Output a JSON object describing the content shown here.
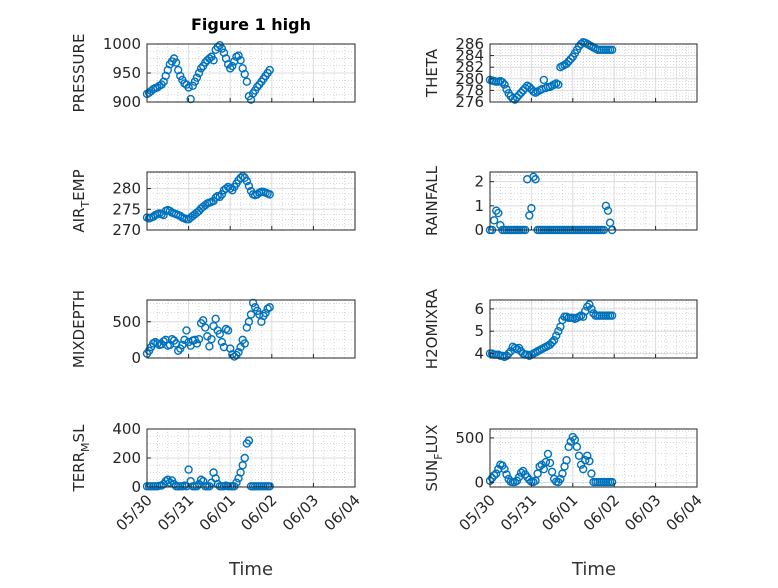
{
  "title": "Figure 1 high",
  "xlabel": "Time",
  "x_tick_labels": [
    "05/30",
    "05/31",
    "06/01",
    "06/02",
    "06/03",
    "06/04"
  ],
  "marker_color": "#0072BD",
  "chart_data": [
    {
      "type": "scatter",
      "id": "pressure",
      "ylabel": "PRESSURE",
      "ylim": [
        900,
        1000
      ],
      "yticks": [
        900,
        950,
        1000
      ],
      "grid": true,
      "minor_grid": true,
      "xlim": [
        "05/30",
        "06/04"
      ],
      "x": [
        0,
        0.05,
        0.1,
        0.15,
        0.2,
        0.25,
        0.3,
        0.35,
        0.4,
        0.45,
        0.5,
        0.55,
        0.6,
        0.65,
        0.7,
        0.75,
        0.8,
        0.85,
        0.9,
        0.95,
        1.0,
        1.05,
        1.1,
        1.15,
        1.2,
        1.25,
        1.3,
        1.35,
        1.4,
        1.45,
        1.5,
        1.55,
        1.6,
        1.65,
        1.7,
        1.75,
        1.8,
        1.85,
        1.9,
        1.95,
        2.0,
        2.05,
        2.1,
        2.15,
        2.2,
        2.25,
        2.3,
        2.35,
        2.4,
        2.45,
        2.5,
        2.55,
        2.6,
        2.65,
        2.7,
        2.75,
        2.8,
        2.85,
        2.9,
        2.95
      ],
      "y": [
        914,
        916,
        919,
        922,
        924,
        925,
        928,
        930,
        935,
        945,
        955,
        965,
        970,
        975,
        968,
        955,
        945,
        938,
        932,
        930,
        925,
        905,
        928,
        935,
        942,
        950,
        958,
        962,
        968,
        972,
        975,
        978,
        972,
        990,
        995,
        998,
        992,
        985,
        975,
        965,
        958,
        962,
        970,
        978,
        980,
        972,
        958,
        948,
        935,
        910,
        904,
        915,
        920,
        926,
        930,
        935,
        940,
        945,
        950,
        955
      ]
    },
    {
      "type": "scatter",
      "id": "theta",
      "ylabel": "THETA",
      "ylim": [
        276,
        286
      ],
      "yticks": [
        276,
        278,
        280,
        282,
        284,
        286
      ],
      "grid": true,
      "minor_grid": true,
      "x": [
        0,
        0.05,
        0.1,
        0.15,
        0.2,
        0.25,
        0.3,
        0.35,
        0.4,
        0.45,
        0.5,
        0.55,
        0.6,
        0.65,
        0.7,
        0.75,
        0.8,
        0.85,
        0.9,
        0.95,
        1.0,
        1.05,
        1.1,
        1.15,
        1.2,
        1.25,
        1.3,
        1.35,
        1.4,
        1.45,
        1.5,
        1.55,
        1.6,
        1.65,
        1.7,
        1.75,
        1.8,
        1.85,
        1.9,
        1.95,
        2.0,
        2.05,
        2.1,
        2.15,
        2.2,
        2.25,
        2.3,
        2.35,
        2.4,
        2.45,
        2.5,
        2.55,
        2.6,
        2.65,
        2.7,
        2.75,
        2.8,
        2.85,
        2.9,
        2.95
      ],
      "y": [
        279.8,
        279.7,
        279.6,
        279.5,
        279.5,
        279.6,
        279.4,
        279.0,
        278.2,
        277.5,
        277.0,
        276.6,
        276.4,
        276.8,
        277.2,
        277.6,
        278.0,
        278.4,
        278.8,
        278.6,
        278.2,
        277.8,
        277.6,
        277.8,
        278.0,
        278.2,
        279.8,
        278.4,
        278.6,
        278.6,
        278.8,
        279.0,
        279.2,
        279.0,
        282.0,
        282.2,
        282.4,
        282.6,
        283.0,
        283.4,
        283.8,
        284.4,
        285.0,
        285.6,
        286.0,
        286.3,
        286.2,
        286.0,
        285.8,
        285.6,
        285.4,
        285.2,
        285.0,
        285.0,
        285.0,
        285.0,
        285.0,
        285.0,
        285.0,
        285.0
      ]
    },
    {
      "type": "scatter",
      "id": "air_temp",
      "ylabel": "AIR_TEMP",
      "ylim": [
        270,
        284
      ],
      "yticks": [
        270,
        275,
        280
      ],
      "grid": true,
      "minor_grid": true,
      "x": [
        0,
        0.05,
        0.1,
        0.15,
        0.2,
        0.25,
        0.3,
        0.35,
        0.4,
        0.45,
        0.5,
        0.55,
        0.6,
        0.65,
        0.7,
        0.75,
        0.8,
        0.85,
        0.9,
        0.95,
        1.0,
        1.05,
        1.1,
        1.15,
        1.2,
        1.25,
        1.3,
        1.35,
        1.4,
        1.45,
        1.5,
        1.55,
        1.6,
        1.65,
        1.7,
        1.75,
        1.8,
        1.85,
        1.9,
        1.95,
        2.0,
        2.05,
        2.1,
        2.15,
        2.2,
        2.25,
        2.3,
        2.35,
        2.4,
        2.45,
        2.5,
        2.55,
        2.6,
        2.65,
        2.7,
        2.75,
        2.8,
        2.85,
        2.9,
        2.95
      ],
      "y": [
        273.0,
        272.8,
        273.0,
        273.2,
        273.6,
        273.8,
        274.0,
        273.8,
        273.6,
        274.6,
        274.8,
        274.6,
        274.2,
        274.0,
        273.8,
        273.6,
        273.4,
        273.0,
        272.8,
        272.6,
        272.6,
        273.0,
        273.4,
        273.8,
        274.2,
        274.6,
        275.2,
        275.6,
        276.0,
        276.4,
        276.6,
        276.8,
        277.0,
        277.8,
        278.2,
        278.0,
        278.6,
        279.6,
        280.0,
        280.4,
        280.0,
        279.6,
        280.4,
        281.2,
        282.0,
        282.6,
        283.0,
        282.6,
        281.8,
        280.6,
        279.4,
        278.6,
        278.4,
        278.6,
        279.0,
        279.2,
        279.2,
        279.0,
        278.8,
        278.6
      ]
    },
    {
      "type": "scatter",
      "id": "rainfall",
      "ylabel": "RAINFALL",
      "ylim": [
        0,
        2.4
      ],
      "yticks": [
        0,
        1,
        2
      ],
      "grid": true,
      "minor_grid": true,
      "x": [
        0,
        0.05,
        0.1,
        0.15,
        0.2,
        0.25,
        0.3,
        0.35,
        0.4,
        0.45,
        0.5,
        0.55,
        0.6,
        0.65,
        0.7,
        0.75,
        0.8,
        0.85,
        0.9,
        0.95,
        1.0,
        1.05,
        1.1,
        1.15,
        1.2,
        1.25,
        1.3,
        1.35,
        1.4,
        1.45,
        1.5,
        1.55,
        1.6,
        1.65,
        1.7,
        1.75,
        1.8,
        1.85,
        1.9,
        1.95,
        2.0,
        2.05,
        2.1,
        2.15,
        2.2,
        2.25,
        2.3,
        2.35,
        2.4,
        2.45,
        2.5,
        2.55,
        2.6,
        2.65,
        2.7,
        2.75,
        2.8,
        2.85,
        2.9,
        2.95
      ],
      "y": [
        0,
        0,
        0.4,
        0.8,
        0.7,
        0.2,
        0,
        0,
        0,
        0,
        0,
        0,
        0,
        0,
        0,
        0,
        0,
        0,
        2.1,
        0.6,
        0.9,
        2.2,
        2.1,
        0,
        0,
        0,
        0,
        0,
        0,
        0,
        0,
        0,
        0,
        0,
        0,
        0,
        0,
        0,
        0,
        0,
        0,
        0,
        0,
        0,
        0,
        0,
        0,
        0,
        0,
        0,
        0,
        0,
        0,
        0,
        0,
        0,
        1.0,
        0.8,
        0.3,
        0
      ]
    },
    {
      "type": "scatter",
      "id": "mixdepth",
      "ylabel": "MIXDEPTH",
      "ylim": [
        0,
        800
      ],
      "yticks": [
        0,
        500
      ],
      "grid": true,
      "minor_grid": true,
      "x": [
        0,
        0.05,
        0.1,
        0.15,
        0.2,
        0.25,
        0.3,
        0.35,
        0.4,
        0.45,
        0.5,
        0.55,
        0.6,
        0.65,
        0.7,
        0.75,
        0.8,
        0.85,
        0.9,
        0.95,
        1.0,
        1.05,
        1.1,
        1.15,
        1.2,
        1.25,
        1.3,
        1.35,
        1.4,
        1.45,
        1.5,
        1.55,
        1.6,
        1.65,
        1.7,
        1.75,
        1.8,
        1.85,
        1.9,
        1.95,
        2.0,
        2.05,
        2.1,
        2.15,
        2.2,
        2.25,
        2.3,
        2.35,
        2.4,
        2.45,
        2.5,
        2.55,
        2.6,
        2.65,
        2.7,
        2.75,
        2.8,
        2.85,
        2.9,
        2.95
      ],
      "y": [
        60,
        100,
        150,
        200,
        220,
        200,
        180,
        190,
        230,
        250,
        170,
        180,
        260,
        240,
        200,
        100,
        130,
        180,
        250,
        380,
        220,
        170,
        240,
        250,
        200,
        260,
        480,
        520,
        420,
        300,
        160,
        260,
        440,
        540,
        380,
        330,
        220,
        150,
        400,
        380,
        130,
        50,
        20,
        40,
        80,
        150,
        250,
        200,
        420,
        500,
        600,
        760,
        700,
        650,
        600,
        500,
        580,
        620,
        680,
        700
      ]
    },
    {
      "type": "scatter",
      "id": "h2omixra",
      "ylabel": "H2OMIXRA",
      "ylim": [
        3.8,
        6.4
      ],
      "yticks": [
        4,
        5,
        6
      ],
      "grid": true,
      "minor_grid": true,
      "x": [
        0,
        0.05,
        0.1,
        0.15,
        0.2,
        0.25,
        0.3,
        0.35,
        0.4,
        0.45,
        0.5,
        0.55,
        0.6,
        0.65,
        0.7,
        0.75,
        0.8,
        0.85,
        0.9,
        0.95,
        1.0,
        1.05,
        1.1,
        1.15,
        1.2,
        1.25,
        1.3,
        1.35,
        1.4,
        1.45,
        1.5,
        1.55,
        1.6,
        1.65,
        1.7,
        1.75,
        1.8,
        1.85,
        1.9,
        1.95,
        2.0,
        2.05,
        2.1,
        2.15,
        2.2,
        2.25,
        2.3,
        2.35,
        2.4,
        2.45,
        2.5,
        2.55,
        2.6,
        2.65,
        2.7,
        2.75,
        2.8,
        2.85,
        2.9,
        2.95
      ],
      "y": [
        4.0,
        4.0,
        3.95,
        3.95,
        3.95,
        3.9,
        3.9,
        3.85,
        3.9,
        4.0,
        4.1,
        4.3,
        4.25,
        4.2,
        4.25,
        4.1,
        4.0,
        3.95,
        3.95,
        3.9,
        3.95,
        4.0,
        4.05,
        4.1,
        4.15,
        4.2,
        4.25,
        4.3,
        4.35,
        4.4,
        4.5,
        4.6,
        4.8,
        5.0,
        5.2,
        5.5,
        5.65,
        5.65,
        5.6,
        5.6,
        5.6,
        5.55,
        5.6,
        5.65,
        5.7,
        5.65,
        5.9,
        6.1,
        6.2,
        6.0,
        5.8,
        5.7,
        5.7,
        5.7,
        5.7,
        5.7,
        5.7,
        5.7,
        5.7,
        5.7
      ]
    },
    {
      "type": "scatter",
      "id": "terr_msl",
      "ylabel": "TERR_MSL",
      "ylim": [
        0,
        400
      ],
      "yticks": [
        0,
        200,
        400
      ],
      "grid": true,
      "minor_grid": true,
      "x": [
        0,
        0.05,
        0.1,
        0.15,
        0.2,
        0.25,
        0.3,
        0.35,
        0.4,
        0.45,
        0.5,
        0.55,
        0.6,
        0.65,
        0.7,
        0.75,
        0.8,
        0.85,
        0.9,
        0.95,
        1.0,
        1.05,
        1.1,
        1.15,
        1.2,
        1.25,
        1.3,
        1.35,
        1.4,
        1.45,
        1.5,
        1.55,
        1.6,
        1.65,
        1.7,
        1.75,
        1.8,
        1.85,
        1.9,
        1.95,
        2.0,
        2.05,
        2.1,
        2.15,
        2.2,
        2.25,
        2.3,
        2.35,
        2.4,
        2.45,
        2.5,
        2.55,
        2.6,
        2.65,
        2.7,
        2.75,
        2.8,
        2.85,
        2.9,
        2.95
      ],
      "y": [
        5,
        5,
        5,
        5,
        5,
        5,
        8,
        10,
        20,
        40,
        50,
        30,
        45,
        20,
        5,
        5,
        5,
        5,
        10,
        5,
        120,
        40,
        5,
        5,
        5,
        20,
        50,
        40,
        5,
        5,
        5,
        30,
        100,
        60,
        20,
        5,
        5,
        5,
        10,
        5,
        5,
        5,
        5,
        30,
        60,
        100,
        150,
        200,
        300,
        320,
        5,
        5,
        5,
        5,
        5,
        5,
        5,
        5,
        5,
        5
      ]
    },
    {
      "type": "scatter",
      "id": "sun_flux",
      "ylabel": "SUN_FLUX",
      "ylim": [
        -50,
        600
      ],
      "yticks": [
        0,
        500
      ],
      "grid": true,
      "minor_grid": true,
      "x": [
        0,
        0.05,
        0.1,
        0.15,
        0.2,
        0.25,
        0.3,
        0.35,
        0.4,
        0.45,
        0.5,
        0.55,
        0.6,
        0.65,
        0.7,
        0.75,
        0.8,
        0.85,
        0.9,
        0.95,
        1.0,
        1.05,
        1.1,
        1.15,
        1.2,
        1.25,
        1.3,
        1.35,
        1.4,
        1.45,
        1.5,
        1.55,
        1.6,
        1.65,
        1.7,
        1.75,
        1.8,
        1.85,
        1.9,
        1.95,
        2.0,
        2.05,
        2.1,
        2.15,
        2.2,
        2.25,
        2.3,
        2.35,
        2.4,
        2.45,
        2.5,
        2.55,
        2.6,
        2.65,
        2.7,
        2.75,
        2.8,
        2.85,
        2.9,
        2.95
      ],
      "y": [
        20,
        50,
        80,
        100,
        150,
        200,
        190,
        150,
        90,
        40,
        10,
        5,
        5,
        20,
        60,
        110,
        130,
        90,
        60,
        30,
        10,
        5,
        20,
        100,
        180,
        200,
        150,
        230,
        320,
        220,
        120,
        40,
        10,
        5,
        40,
        100,
        180,
        250,
        400,
        460,
        510,
        480,
        400,
        300,
        200,
        150,
        250,
        300,
        240,
        100,
        5,
        5,
        5,
        5,
        5,
        5,
        5,
        5,
        5,
        5
      ]
    }
  ]
}
